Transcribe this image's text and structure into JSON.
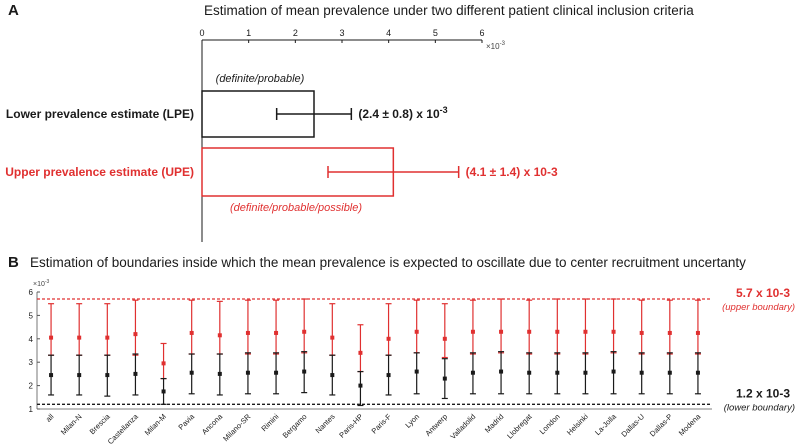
{
  "panel_a": {
    "letter": "A",
    "title": "Estimation of mean prevalence under two different patient clinical inclusion criteria"
  },
  "panel_b": {
    "letter": "B",
    "title": "Estimation of boundaries inside which the mean prevalence is expected to oscillate due to center recruitment uncertanty"
  },
  "colors": {
    "black": "#1a1a1a",
    "red": "#e03030"
  },
  "chart_data": [
    {
      "type": "bar",
      "orientation": "horizontal",
      "x_ticks": [
        "0",
        "1",
        "2",
        "3",
        "4",
        "5",
        "6"
      ],
      "x_multiplier": "×10",
      "x_multiplier_exp": "-3",
      "xlim": [
        0,
        6
      ],
      "categories": [
        "Lower prevalence estimate (LPE)",
        "Upper prevalence estimate (UPE)"
      ],
      "values": [
        2.4,
        4.1
      ],
      "errors": [
        0.8,
        1.4
      ],
      "colors": [
        "#1a1a1a",
        "#e03030"
      ],
      "bar_captions": [
        "(definite/probable)",
        "(definite/probable/possible)"
      ],
      "value_labels": [
        {
          "main": "(2.4 ± 0.8) x 10",
          "exp": "-3"
        },
        {
          "main": "(4.1 ± 1.4) x 10-3",
          "exp": ""
        }
      ]
    },
    {
      "type": "scatter",
      "error_bars": true,
      "y_multiplier": "×10",
      "y_multiplier_exp": "-3",
      "ylim": [
        1,
        6
      ],
      "y_ticks": [
        "1",
        "2",
        "3",
        "4",
        "5",
        "6"
      ],
      "categories": [
        "all",
        "Milan-N",
        "Brescia",
        "Castellanza",
        "Milan-M",
        "Pavia",
        "Ancona",
        "Milano-SR",
        "Rimini",
        "Bergamo",
        "Nantes",
        "Paris-HP",
        "Paris-F",
        "Lyon",
        "Antwerp",
        "Valladolid",
        "Madrid",
        "Llobregat",
        "London",
        "Helsinki",
        "La-Jolla",
        "Dallas-U",
        "Dallas-P",
        "Modena"
      ],
      "series": [
        {
          "color": "#e03030",
          "center": [
            4.05,
            4.05,
            4.05,
            4.2,
            2.95,
            4.25,
            4.15,
            4.25,
            4.25,
            4.3,
            4.05,
            3.4,
            4.0,
            4.3,
            4.0,
            4.3,
            4.3,
            4.3,
            4.3,
            4.3,
            4.3,
            4.25,
            4.25,
            4.25
          ],
          "low": [
            3.3,
            3.3,
            3.3,
            3.3,
            2.3,
            3.35,
            3.35,
            3.35,
            3.35,
            3.4,
            3.3,
            2.6,
            3.3,
            3.4,
            3.2,
            3.35,
            3.4,
            3.35,
            3.35,
            3.35,
            3.4,
            3.35,
            3.35,
            3.35
          ],
          "high": [
            5.5,
            5.5,
            5.5,
            5.65,
            3.8,
            5.65,
            5.6,
            5.65,
            5.65,
            5.7,
            5.5,
            4.6,
            5.5,
            5.65,
            5.5,
            5.65,
            5.7,
            5.65,
            5.7,
            5.7,
            5.7,
            5.65,
            5.65,
            5.65
          ]
        },
        {
          "color": "#1a1a1a",
          "center": [
            2.45,
            2.45,
            2.45,
            2.5,
            1.75,
            2.55,
            2.5,
            2.55,
            2.55,
            2.6,
            2.45,
            2.0,
            2.45,
            2.6,
            2.3,
            2.55,
            2.6,
            2.55,
            2.55,
            2.55,
            2.6,
            2.55,
            2.55,
            2.55
          ],
          "low": [
            1.6,
            1.6,
            1.55,
            1.6,
            1.2,
            1.65,
            1.6,
            1.65,
            1.65,
            1.7,
            1.6,
            1.15,
            1.6,
            1.65,
            1.45,
            1.65,
            1.65,
            1.65,
            1.65,
            1.65,
            1.65,
            1.65,
            1.65,
            1.65
          ],
          "high": [
            3.3,
            3.3,
            3.3,
            3.35,
            2.3,
            3.35,
            3.35,
            3.4,
            3.4,
            3.45,
            3.3,
            2.6,
            3.3,
            3.4,
            3.15,
            3.4,
            3.45,
            3.4,
            3.4,
            3.4,
            3.45,
            3.4,
            3.4,
            3.4
          ]
        }
      ],
      "boundaries": [
        {
          "value": 5.7,
          "color": "#e03030",
          "label": "5.7 x 10-3",
          "sublabel": "(upper boundary)"
        },
        {
          "value": 1.2,
          "color": "#1a1a1a",
          "label": "1.2 x 10-3",
          "sublabel": "(lower boundary)"
        }
      ]
    }
  ]
}
